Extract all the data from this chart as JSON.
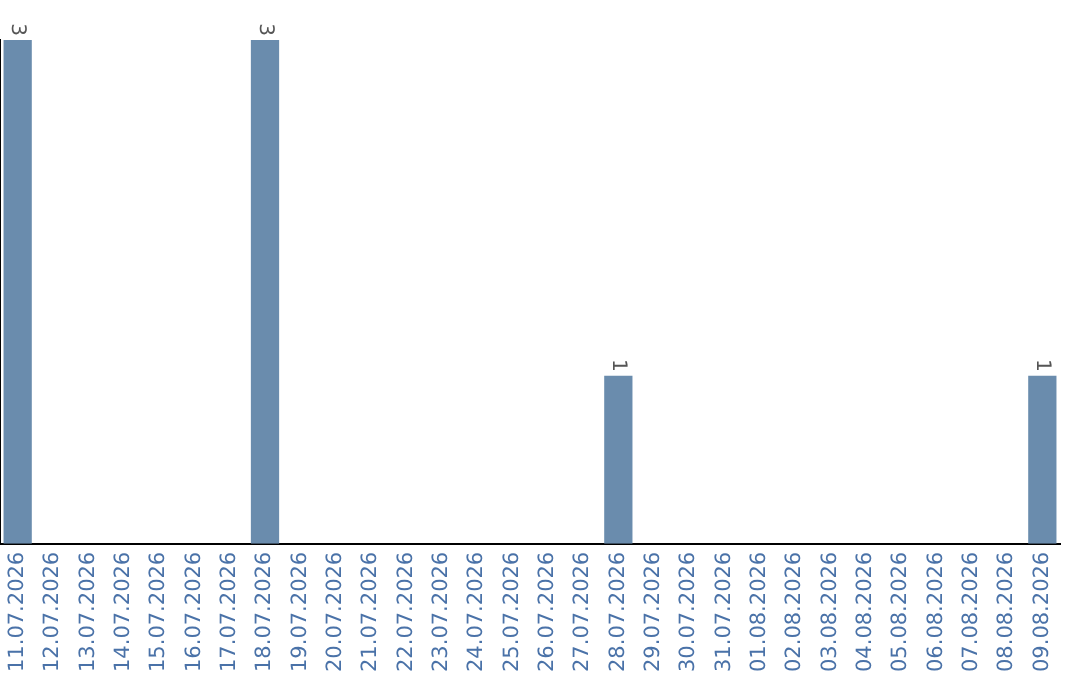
{
  "chart_data": {
    "type": "bar",
    "categories": [
      "11.07.2026",
      "12.07.2026",
      "13.07.2026",
      "14.07.2026",
      "15.07.2026",
      "16.07.2026",
      "17.07.2026",
      "18.07.2026",
      "19.07.2026",
      "20.07.2026",
      "21.07.2026",
      "22.07.2026",
      "23.07.2026",
      "24.07.2026",
      "25.07.2026",
      "26.07.2026",
      "27.07.2026",
      "28.07.2026",
      "29.07.2026",
      "30.07.2026",
      "31.07.2026",
      "01.08.2026",
      "02.08.2026",
      "03.08.2026",
      "04.08.2026",
      "05.08.2026",
      "06.08.2026",
      "07.08.2026",
      "08.08.2026",
      "09.08.2026"
    ],
    "values": [
      3,
      0,
      0,
      0,
      0,
      0,
      0,
      3,
      0,
      0,
      0,
      0,
      0,
      0,
      0,
      0,
      0,
      1,
      0,
      0,
      0,
      0,
      0,
      0,
      0,
      0,
      0,
      0,
      0,
      1
    ],
    "value_labels": [
      "3",
      null,
      null,
      null,
      null,
      null,
      null,
      "3",
      null,
      null,
      null,
      null,
      null,
      null,
      null,
      null,
      null,
      "1",
      null,
      null,
      null,
      null,
      null,
      null,
      null,
      null,
      null,
      null,
      null,
      "1"
    ],
    "color": "#6a8cad",
    "tick_labels": "x",
    "grid": false,
    "legend": false
  }
}
